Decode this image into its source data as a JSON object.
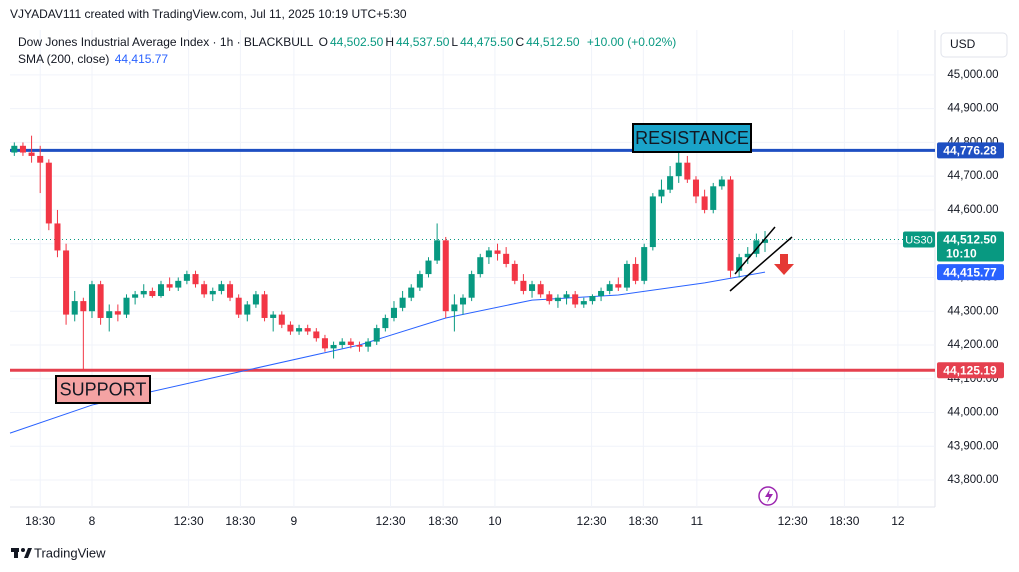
{
  "watermark": "VJYADAV111 created with TradingView.com, Jul 11, 2025 10:19 UTC+5:30",
  "currency": "USD",
  "footer": "TradingView",
  "chart_data": {
    "type": "candlestick",
    "title": "Dow Jones Industrial Average Index · 1h · BLACKBULL",
    "ohlc_legend": [
      {
        "key": "O",
        "label": "44,502.50"
      },
      {
        "key": "H",
        "label": "44,537.50"
      },
      {
        "key": "L",
        "label": "44,475.50"
      },
      {
        "key": "C",
        "label": "44,512.50"
      }
    ],
    "change": "+10.00 (+0.02%)",
    "up_color": "#089981",
    "down_color": "#f23645",
    "grid": true,
    "xlim": [
      -0.5,
      106.7
    ],
    "ylim": [
      43726,
      45133
    ],
    "xticks": [
      {
        "value": 3,
        "label": "18:30"
      },
      {
        "value": 9,
        "label": "8"
      },
      {
        "value": 20.2,
        "label": "12:30"
      },
      {
        "value": 26.2,
        "label": "18:30"
      },
      {
        "value": 32.4,
        "label": "9"
      },
      {
        "value": 43.6,
        "label": "12:30"
      },
      {
        "value": 49.7,
        "label": "18:30"
      },
      {
        "value": 55.7,
        "label": "10"
      },
      {
        "value": 66.9,
        "label": "12:30"
      },
      {
        "value": 72.9,
        "label": "18:30"
      },
      {
        "value": 79.1,
        "label": "11"
      },
      {
        "value": 90.2,
        "label": "12:30"
      },
      {
        "value": 96.2,
        "label": "18:30"
      },
      {
        "value": 102.4,
        "label": "12"
      }
    ],
    "yticks": [
      {
        "value": 43800,
        "label": "43,800.00"
      },
      {
        "value": 43900,
        "label": "43,900.00"
      },
      {
        "value": 44000,
        "label": "44,000.00"
      },
      {
        "value": 44100,
        "label": "44,100.00"
      },
      {
        "value": 44200,
        "label": "44,200.00"
      },
      {
        "value": 44300,
        "label": "44,300.00"
      },
      {
        "value": 44400,
        "label": "44,400.00"
      },
      {
        "value": 44500,
        "label": "44,500.00"
      },
      {
        "value": 44600,
        "label": "44,600.00"
      },
      {
        "value": 44700,
        "label": "44,700.00"
      },
      {
        "value": 44800,
        "label": "44,800.00"
      },
      {
        "value": 44900,
        "label": "44,900.00"
      },
      {
        "value": 45000,
        "label": "45,000.00"
      }
    ],
    "open": [
      44770,
      44790,
      44770,
      44760,
      44740,
      44560,
      44480,
      44290,
      44330,
      44300,
      44380,
      44280,
      44300,
      44290,
      44340,
      44350,
      44360,
      44345,
      44380,
      44370,
      44390,
      44410,
      44380,
      44350,
      44360,
      44380,
      44340,
      44290,
      44320,
      44350,
      44280,
      44290,
      44260,
      44240,
      44250,
      44240,
      44220,
      44190,
      44200,
      44210,
      44200,
      44195,
      44210,
      44250,
      44280,
      44310,
      44340,
      44370,
      44410,
      44450,
      44510,
      44300,
      44320,
      44340,
      44410,
      44460,
      44480,
      44470,
      44440,
      44390,
      44360,
      44380,
      44350,
      44330,
      44340,
      44350,
      44320,
      44330,
      44345,
      44360,
      44380,
      44370,
      44440,
      44390,
      44490,
      44640,
      44660,
      44700,
      44740,
      44690,
      44640,
      44600,
      44670,
      44690,
      44420,
      44460,
      44470,
      44502.5
    ],
    "high": [
      44800,
      44800,
      44820,
      44790,
      44750,
      44600,
      44500,
      44360,
      44340,
      44390,
      44390,
      44320,
      44320,
      44350,
      44360,
      44380,
      44370,
      44390,
      44400,
      44400,
      44420,
      44420,
      44390,
      44370,
      44390,
      44390,
      44350,
      44330,
      44360,
      44360,
      44300,
      44300,
      44270,
      44260,
      44260,
      44250,
      44230,
      44210,
      44220,
      44220,
      44210,
      44220,
      44260,
      44290,
      44330,
      44360,
      44380,
      44420,
      44460,
      44560,
      44520,
      44350,
      44350,
      44420,
      44470,
      44490,
      44500,
      44490,
      44450,
      44410,
      44390,
      44390,
      44360,
      44350,
      44360,
      44360,
      44340,
      44350,
      44370,
      44390,
      44400,
      44450,
      44460,
      44500,
      44650,
      44690,
      44730,
      44776,
      44760,
      44700,
      44660,
      44680,
      44700,
      44700,
      44470,
      44490,
      44530,
      44537.5
    ],
    "low": [
      44760,
      44760,
      44740,
      44650,
      44540,
      44460,
      44260,
      44270,
      44126,
      44280,
      44260,
      44240,
      44270,
      44280,
      44320,
      44340,
      44340,
      44340,
      44360,
      44360,
      44380,
      44370,
      44340,
      44330,
      44350,
      44330,
      44280,
      44270,
      44310,
      44270,
      44240,
      44250,
      44230,
      44230,
      44230,
      44210,
      44180,
      44160,
      44190,
      44190,
      44180,
      44180,
      44200,
      44240,
      44270,
      44300,
      44330,
      44360,
      44400,
      44440,
      44280,
      44240,
      44290,
      44330,
      44400,
      44440,
      44450,
      44430,
      44380,
      44350,
      44340,
      44340,
      44320,
      44310,
      44320,
      44310,
      44310,
      44320,
      44330,
      44350,
      44360,
      44360,
      44380,
      44380,
      44480,
      44620,
      44650,
      44680,
      44680,
      44620,
      44590,
      44590,
      44660,
      44400,
      44400,
      44440,
      44460,
      44475.5
    ],
    "close": [
      44790,
      44770,
      44760,
      44740,
      44560,
      44480,
      44290,
      44330,
      44300,
      44380,
      44280,
      44300,
      44290,
      44340,
      44350,
      44360,
      44345,
      44380,
      44370,
      44390,
      44410,
      44380,
      44350,
      44360,
      44380,
      44340,
      44290,
      44320,
      44350,
      44280,
      44290,
      44260,
      44240,
      44250,
      44240,
      44220,
      44190,
      44200,
      44210,
      44200,
      44195,
      44210,
      44250,
      44280,
      44310,
      44340,
      44370,
      44410,
      44450,
      44510,
      44300,
      44320,
      44340,
      44410,
      44460,
      44480,
      44470,
      44440,
      44390,
      44360,
      44380,
      44350,
      44330,
      44340,
      44350,
      44320,
      44330,
      44345,
      44360,
      44380,
      44370,
      44440,
      44390,
      44490,
      44640,
      44660,
      44700,
      44740,
      44690,
      44640,
      44600,
      44670,
      44690,
      44420,
      44460,
      44470,
      44510,
      44512.5
    ],
    "sma": {
      "name": "SMA (200, close)",
      "color": "#2962ff",
      "value_label": "44,415.77",
      "x": [
        -0.5,
        9,
        26,
        40,
        50,
        60,
        70,
        80,
        87
      ],
      "values": [
        43939,
        44022,
        44120,
        44200,
        44280,
        44333,
        44348,
        44384,
        44415.77
      ]
    },
    "hlines": [
      {
        "name": "RESISTANCE",
        "value": 44776.28,
        "label": "44,776.28",
        "color": "#1e4fc2",
        "box_color": "#1aa3c9"
      },
      {
        "name": "SUPPORT",
        "value": 44125.19,
        "label": "44,125.19",
        "color": "#e5404f",
        "box_color": "#f4a3a3"
      }
    ],
    "last": {
      "symbol": "US30",
      "value": 44512.5,
      "label": "44,512.50",
      "countdown": "10:10",
      "color": "#089981"
    }
  }
}
